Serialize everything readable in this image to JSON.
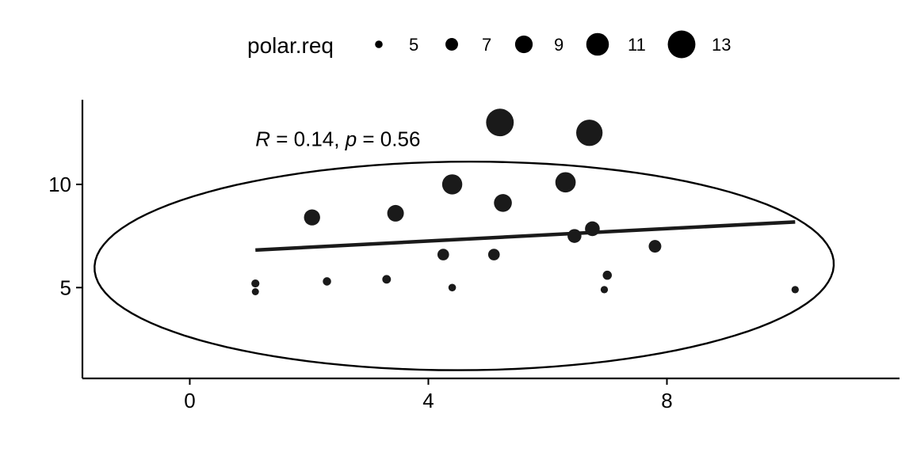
{
  "chart_data": {
    "type": "scatter",
    "title": "",
    "xlabel": "",
    "ylabel": "",
    "xlim": [
      -1.8,
      11.9
    ],
    "ylim": [
      0.6,
      14.1
    ],
    "x_ticks": [
      {
        "value": 0,
        "label": "0"
      },
      {
        "value": 4,
        "label": "4"
      },
      {
        "value": 8,
        "label": "8"
      }
    ],
    "y_ticks": [
      {
        "value": 5,
        "label": "5"
      },
      {
        "value": 10,
        "label": "10"
      }
    ],
    "size_legend": {
      "title": "polar.req",
      "placement": "top",
      "entries": [
        {
          "value": 5,
          "label": "5"
        },
        {
          "value": 7,
          "label": "7"
        },
        {
          "value": 9,
          "label": "9"
        },
        {
          "value": 11,
          "label": "11"
        },
        {
          "value": 13,
          "label": "13"
        }
      ]
    },
    "points": [
      {
        "x": 1.1,
        "y": 5.2,
        "size": 5.2
      },
      {
        "x": 1.1,
        "y": 4.8,
        "size": 4.8
      },
      {
        "x": 2.05,
        "y": 8.4,
        "size": 8.4
      },
      {
        "x": 2.3,
        "y": 5.3,
        "size": 5.3
      },
      {
        "x": 3.3,
        "y": 5.4,
        "size": 5.4
      },
      {
        "x": 3.45,
        "y": 8.6,
        "size": 8.6
      },
      {
        "x": 4.25,
        "y": 6.6,
        "size": 6.6
      },
      {
        "x": 4.4,
        "y": 10.0,
        "size": 10.0
      },
      {
        "x": 4.4,
        "y": 5.0,
        "size": 5.0
      },
      {
        "x": 5.1,
        "y": 6.6,
        "size": 6.6
      },
      {
        "x": 5.2,
        "y": 13.0,
        "size": 13.0
      },
      {
        "x": 5.25,
        "y": 9.1,
        "size": 9.1
      },
      {
        "x": 6.3,
        "y": 10.1,
        "size": 10.1
      },
      {
        "x": 6.45,
        "y": 7.5,
        "size": 7.5
      },
      {
        "x": 6.7,
        "y": 12.5,
        "size": 12.5
      },
      {
        "x": 6.75,
        "y": 7.85,
        "size": 7.85
      },
      {
        "x": 6.95,
        "y": 4.9,
        "size": 4.9
      },
      {
        "x": 7.0,
        "y": 5.6,
        "size": 5.6
      },
      {
        "x": 7.8,
        "y": 7.0,
        "size": 7.0
      },
      {
        "x": 10.15,
        "y": 4.9,
        "size": 4.9
      }
    ],
    "regression_line": {
      "x": [
        1.1,
        10.15
      ],
      "y": [
        6.82,
        8.18
      ]
    },
    "ellipse": {
      "cx": 4.6,
      "cy": 6.05,
      "rx": 6.2,
      "ry": 5.05,
      "angle_deg": 2.5
    },
    "annotation": {
      "R_symbol": "R",
      "r_text": " = 0.14, ",
      "p_symbol": "p",
      "p_text": " = 0.56",
      "x": 1.1,
      "y": 12.2
    },
    "grid": false,
    "point_color": "#1a1a1a",
    "line_color": "#1a1a1a"
  }
}
